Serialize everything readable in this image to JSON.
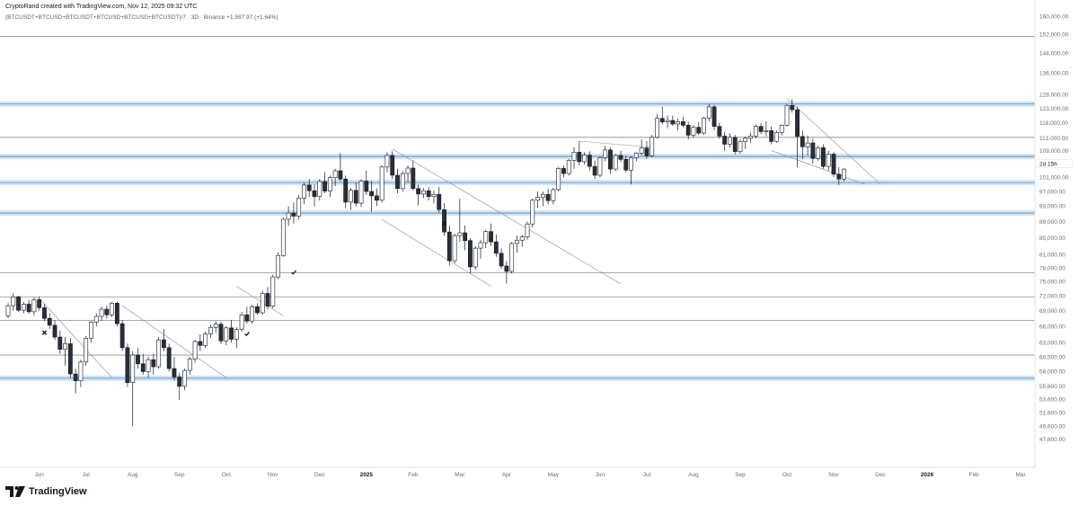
{
  "header": {
    "created": "CryptoRand created with TradingView.com, Nov 12, 2025 09:32 UTC",
    "symbol": "(BTCUSDT+BTCUSD+BTCUSDT+BTCUSD+BTCUSD+BTCUSDT)/7 · 3D · Binance",
    "change": "+1,587.97 (+1.64%)"
  },
  "brand": {
    "name": "TradingView",
    "logo_icon": "tradingview-logo-icon"
  },
  "chart_data": {
    "type": "candlestick",
    "timeframe": "3D",
    "y_scale": "log",
    "ylim": [
      45500,
      160000
    ],
    "y_ticks": [
      {
        "v": 160000,
        "label": "160,000.00"
      },
      {
        "v": 152000,
        "label": "152,000.00"
      },
      {
        "v": 144000,
        "label": "144,000.00"
      },
      {
        "v": 136000,
        "label": "136,000.00"
      },
      {
        "v": 128000,
        "label": "128,000.00"
      },
      {
        "v": 123000,
        "label": "123,000.00"
      },
      {
        "v": 118000,
        "label": "118,000.00"
      },
      {
        "v": 113000,
        "label": "113,000.00"
      },
      {
        "v": 109000,
        "label": "109,000.00"
      },
      {
        "v": 101000,
        "label": "101,000.00"
      },
      {
        "v": 97000,
        "label": "97,000.00"
      },
      {
        "v": 93000,
        "label": "93,000.00"
      },
      {
        "v": 89000,
        "label": "89,000.00"
      },
      {
        "v": 85000,
        "label": "85,000.00"
      },
      {
        "v": 81000,
        "label": "81,000.00"
      },
      {
        "v": 78000,
        "label": "78,000.00"
      },
      {
        "v": 75000,
        "label": "75,000.00"
      },
      {
        "v": 72000,
        "label": "72,000.00"
      },
      {
        "v": 69000,
        "label": "69,000.00"
      },
      {
        "v": 66000,
        "label": "66,000.00"
      },
      {
        "v": 63000,
        "label": "63,000.00"
      },
      {
        "v": 60500,
        "label": "60,500.00"
      },
      {
        "v": 58000,
        "label": "58,000.00"
      },
      {
        "v": 55600,
        "label": "55,600.00"
      },
      {
        "v": 53600,
        "label": "53,600.00"
      },
      {
        "v": 51600,
        "label": "51,600.00"
      },
      {
        "v": 49600,
        "label": "49,600.00"
      },
      {
        "v": 47800,
        "label": "47,800.00"
      }
    ],
    "current_label": "2d 15h",
    "current_value": 105000,
    "x_ticks": [
      {
        "i": 6,
        "label": "Jun"
      },
      {
        "i": 15,
        "label": "Jul"
      },
      {
        "i": 24,
        "label": "Aug"
      },
      {
        "i": 33,
        "label": "Sep"
      },
      {
        "i": 42,
        "label": "Oct"
      },
      {
        "i": 51,
        "label": "Nov"
      },
      {
        "i": 60,
        "label": "Dec"
      },
      {
        "i": 69,
        "label": "2025",
        "bold": true
      },
      {
        "i": 78,
        "label": "Feb"
      },
      {
        "i": 87,
        "label": "Mar"
      },
      {
        "i": 96,
        "label": "Apr"
      },
      {
        "i": 105,
        "label": "May"
      },
      {
        "i": 114,
        "label": "Jun"
      },
      {
        "i": 123,
        "label": "Jul"
      },
      {
        "i": 132,
        "label": "Aug"
      },
      {
        "i": 141,
        "label": "Sep"
      },
      {
        "i": 150,
        "label": "Oct"
      },
      {
        "i": 159,
        "label": "Nov"
      },
      {
        "i": 168,
        "label": "Dec"
      },
      {
        "i": 177,
        "label": "2026",
        "bold": true
      },
      {
        "i": 186,
        "label": "Feb"
      },
      {
        "i": 195,
        "label": "Mar"
      }
    ],
    "horizontal_levels": [
      {
        "v": 151000,
        "style": "gray"
      },
      {
        "v": 124500,
        "style": "blue"
      },
      {
        "v": 113200,
        "style": "gray"
      },
      {
        "v": 107200,
        "style": "blue"
      },
      {
        "v": 99500,
        "style": "blue"
      },
      {
        "v": 91200,
        "style": "blue"
      },
      {
        "v": 76900,
        "style": "gray"
      },
      {
        "v": 71800,
        "style": "gray"
      },
      {
        "v": 67100,
        "style": "gray"
      },
      {
        "v": 60800,
        "style": "gray"
      },
      {
        "v": 56900,
        "style": "blue"
      }
    ],
    "trendlines": [
      {
        "i1": 6,
        "v1": 71500,
        "i2": 20,
        "v2": 57000
      },
      {
        "i1": 22,
        "v1": 70000,
        "i2": 42,
        "v2": 57000
      },
      {
        "i1": 44,
        "v1": 74000,
        "i2": 53,
        "v2": 68000
      },
      {
        "i1": 74,
        "v1": 109500,
        "i2": 118,
        "v2": 74500
      },
      {
        "i1": 72,
        "v1": 89500,
        "i2": 93,
        "v2": 74000
      },
      {
        "i1": 110,
        "v1": 112000,
        "i2": 124,
        "v2": 110000
      },
      {
        "i1": 150,
        "v1": 126500,
        "i2": 168,
        "v2": 99000
      },
      {
        "i1": 147,
        "v1": 109000,
        "i2": 165,
        "v2": 99000
      }
    ],
    "markers": [
      {
        "i": 7,
        "v": 64800,
        "type": "cross"
      },
      {
        "i": 84,
        "v": 88500,
        "type": "cross"
      },
      {
        "i": 46,
        "v": 64600,
        "type": "check"
      },
      {
        "i": 55,
        "v": 77000,
        "type": "check"
      }
    ],
    "candles": [
      [
        68000,
        70500,
        67500,
        70000
      ],
      [
        70000,
        72500,
        69000,
        71800
      ],
      [
        71800,
        72000,
        68800,
        69100
      ],
      [
        69100,
        70800,
        68500,
        70300
      ],
      [
        70300,
        71200,
        68400,
        68800
      ],
      [
        68800,
        71700,
        68000,
        71200
      ],
      [
        71200,
        71800,
        69000,
        69600
      ],
      [
        69600,
        70300,
        67000,
        67500
      ],
      [
        67500,
        68500,
        65500,
        66200
      ],
      [
        66200,
        67200,
        63500,
        64000
      ],
      [
        64000,
        65200,
        61000,
        61800
      ],
      [
        61800,
        64000,
        59000,
        62800
      ],
      [
        62800,
        63800,
        57000,
        57600
      ],
      [
        57600,
        58500,
        54500,
        56500
      ],
      [
        56500,
        60000,
        55500,
        59600
      ],
      [
        59600,
        64200,
        59000,
        63800
      ],
      [
        63800,
        67000,
        63000,
        66800
      ],
      [
        66800,
        68500,
        66000,
        67900
      ],
      [
        67900,
        69800,
        67000,
        69300
      ],
      [
        69300,
        70000,
        67500,
        68200
      ],
      [
        68200,
        70800,
        67800,
        70500
      ],
      [
        70500,
        70800,
        66000,
        66500
      ],
      [
        66500,
        67200,
        61500,
        62100
      ],
      [
        62100,
        62800,
        55500,
        56200
      ],
      [
        56200,
        61500,
        49600,
        60800
      ],
      [
        60800,
        62000,
        58500,
        59300
      ],
      [
        59300,
        61000,
        57500,
        58000
      ],
      [
        58000,
        60500,
        57000,
        60000
      ],
      [
        60000,
        61000,
        57500,
        58800
      ],
      [
        58800,
        64000,
        58500,
        63500
      ],
      [
        63500,
        65500,
        61500,
        62100
      ],
      [
        62100,
        62800,
        58000,
        58500
      ],
      [
        58500,
        60500,
        56500,
        57100
      ],
      [
        57100,
        57800,
        53500,
        55600
      ],
      [
        55600,
        58500,
        55000,
        58200
      ],
      [
        58200,
        60500,
        57500,
        60100
      ],
      [
        60100,
        63500,
        59500,
        63200
      ],
      [
        63200,
        64500,
        61500,
        62500
      ],
      [
        62500,
        65000,
        62000,
        64600
      ],
      [
        64600,
        66300,
        63800,
        65800
      ],
      [
        65800,
        67000,
        64800,
        66400
      ],
      [
        66400,
        66900,
        62800,
        63300
      ],
      [
        63300,
        66000,
        62500,
        65700
      ],
      [
        65700,
        67200,
        63000,
        63600
      ],
      [
        63600,
        65800,
        62000,
        65400
      ],
      [
        65400,
        68800,
        65000,
        68200
      ],
      [
        68200,
        69800,
        66500,
        67000
      ],
      [
        67000,
        70200,
        66500,
        69800
      ],
      [
        69800,
        70500,
        68200,
        68600
      ],
      [
        68600,
        73000,
        68300,
        72500
      ],
      [
        72500,
        73800,
        69300,
        69900
      ],
      [
        69900,
        76500,
        69500,
        76000
      ],
      [
        76000,
        81500,
        75500,
        80800
      ],
      [
        80800,
        90000,
        80500,
        89600
      ],
      [
        89600,
        93000,
        88000,
        91200
      ],
      [
        91200,
        94000,
        88500,
        90400
      ],
      [
        90400,
        96000,
        89500,
        95200
      ],
      [
        95200,
        99500,
        93500,
        98800
      ],
      [
        98800,
        100500,
        95500,
        97200
      ],
      [
        97200,
        99000,
        93000,
        95600
      ],
      [
        95600,
        100500,
        94500,
        99800
      ],
      [
        99800,
        102500,
        96500,
        97100
      ],
      [
        97100,
        101500,
        95500,
        100900
      ],
      [
        100900,
        103500,
        98500,
        102900
      ],
      [
        102900,
        108200,
        99800,
        100500
      ],
      [
        100500,
        101500,
        92500,
        94100
      ],
      [
        94100,
        98000,
        92000,
        97300
      ],
      [
        97300,
        99500,
        93000,
        93800
      ],
      [
        93800,
        100500,
        92800,
        99900
      ],
      [
        99900,
        103000,
        96000,
        97000
      ],
      [
        97000,
        100000,
        91500,
        95800
      ],
      [
        95800,
        97800,
        93000,
        94600
      ],
      [
        94600,
        104500,
        94000,
        104000
      ],
      [
        104000,
        108500,
        102500,
        107500
      ],
      [
        107500,
        108800,
        100500,
        101600
      ],
      [
        101600,
        103500,
        96500,
        97800
      ],
      [
        97800,
        102800,
        97000,
        102100
      ],
      [
        102100,
        104500,
        99500,
        103700
      ],
      [
        103700,
        106000,
        97200,
        97800
      ],
      [
        97800,
        99000,
        93200,
        96300
      ],
      [
        96300,
        97900,
        95200,
        97200
      ],
      [
        97200,
        98200,
        94600,
        95600
      ],
      [
        95600,
        97300,
        93800,
        96200
      ],
      [
        96200,
        98300,
        91300,
        92100
      ],
      [
        92100,
        93800,
        85500,
        86400
      ],
      [
        86400,
        88000,
        78500,
        79600
      ],
      [
        79600,
        86000,
        79000,
        85500
      ],
      [
        85500,
        95000,
        84000,
        86200
      ],
      [
        86200,
        88000,
        82000,
        84300
      ],
      [
        84300,
        84900,
        76800,
        78200
      ],
      [
        78200,
        83000,
        77500,
        82500
      ],
      [
        82500,
        84500,
        80000,
        83800
      ],
      [
        83800,
        87000,
        82500,
        86500
      ],
      [
        86500,
        88500,
        83000,
        84000
      ],
      [
        84000,
        85800,
        80500,
        81300
      ],
      [
        81300,
        82500,
        77800,
        78400
      ],
      [
        78400,
        79500,
        74600,
        77200
      ],
      [
        77200,
        84000,
        76800,
        83600
      ],
      [
        83600,
        85500,
        81500,
        84400
      ],
      [
        84400,
        85700,
        82800,
        85200
      ],
      [
        85200,
        89000,
        84500,
        88400
      ],
      [
        88400,
        95000,
        87500,
        94600
      ],
      [
        94600,
        97000,
        92500,
        95400
      ],
      [
        95400,
        97000,
        93000,
        96200
      ],
      [
        96200,
        97800,
        93500,
        94500
      ],
      [
        94500,
        98000,
        93500,
        97500
      ],
      [
        97500,
        104000,
        97000,
        103600
      ],
      [
        103600,
        104500,
        101000,
        102100
      ],
      [
        102100,
        106500,
        101500,
        106000
      ],
      [
        106000,
        110000,
        103500,
        108500
      ],
      [
        108500,
        112000,
        104500,
        105600
      ],
      [
        105600,
        108500,
        104800,
        107600
      ],
      [
        107600,
        108800,
        103000,
        104200
      ],
      [
        104200,
        106000,
        100500,
        101600
      ],
      [
        101600,
        107200,
        101000,
        106800
      ],
      [
        106800,
        110500,
        105800,
        109200
      ],
      [
        109200,
        110000,
        102000,
        103400
      ],
      [
        103400,
        108000,
        102800,
        107500
      ],
      [
        107500,
        109000,
        105500,
        106300
      ],
      [
        106300,
        107500,
        102500,
        103100
      ],
      [
        103100,
        107200,
        99000,
        106800
      ],
      [
        106800,
        108500,
        105800,
        108200
      ],
      [
        108200,
        112500,
        107500,
        109800
      ],
      [
        109800,
        112000,
        106500,
        107400
      ],
      [
        107400,
        114000,
        107000,
        113200
      ],
      [
        113200,
        121000,
        112800,
        119500
      ],
      [
        119500,
        123500,
        117500,
        118300
      ],
      [
        118300,
        120500,
        116200,
        118800
      ],
      [
        118800,
        120500,
        117000,
        117600
      ],
      [
        117600,
        119500,
        115500,
        118400
      ],
      [
        118400,
        120000,
        116500,
        117200
      ],
      [
        117200,
        118400,
        112500,
        113900
      ],
      [
        113900,
        117200,
        113000,
        116500
      ],
      [
        116500,
        118300,
        114000,
        114600
      ],
      [
        114600,
        120000,
        114000,
        119600
      ],
      [
        119600,
        124500,
        118500,
        123500
      ],
      [
        123500,
        124200,
        115500,
        116800
      ],
      [
        116800,
        118000,
        112800,
        113600
      ],
      [
        113600,
        115000,
        109000,
        111000
      ],
      [
        111000,
        114500,
        110000,
        113200
      ],
      [
        113200,
        114000,
        107800,
        108700
      ],
      [
        108700,
        112500,
        108000,
        111800
      ],
      [
        111800,
        113500,
        109500,
        112900
      ],
      [
        112900,
        114800,
        111500,
        113600
      ],
      [
        113600,
        117500,
        112800,
        116800
      ],
      [
        116800,
        117800,
        114200,
        115100
      ],
      [
        115100,
        118500,
        113500,
        115400
      ],
      [
        115400,
        116800,
        111000,
        111900
      ],
      [
        111900,
        115500,
        111500,
        114800
      ],
      [
        114800,
        117500,
        113800,
        117200
      ],
      [
        117200,
        124500,
        116800,
        124000
      ],
      [
        124000,
        126200,
        121500,
        122500
      ],
      [
        122500,
        123500,
        104000,
        113500
      ],
      [
        113500,
        115500,
        106500,
        110200
      ],
      [
        110200,
        113800,
        107500,
        111400
      ],
      [
        111400,
        112800,
        105000,
        106600
      ],
      [
        106600,
        110500,
        105800,
        109900
      ],
      [
        109900,
        111000,
        103500,
        104200
      ],
      [
        104200,
        109000,
        103000,
        107900
      ],
      [
        107900,
        108500,
        101000,
        101900
      ],
      [
        101900,
        104000,
        98800,
        100500
      ],
      [
        100500,
        103600,
        99800,
        103400
      ]
    ]
  }
}
